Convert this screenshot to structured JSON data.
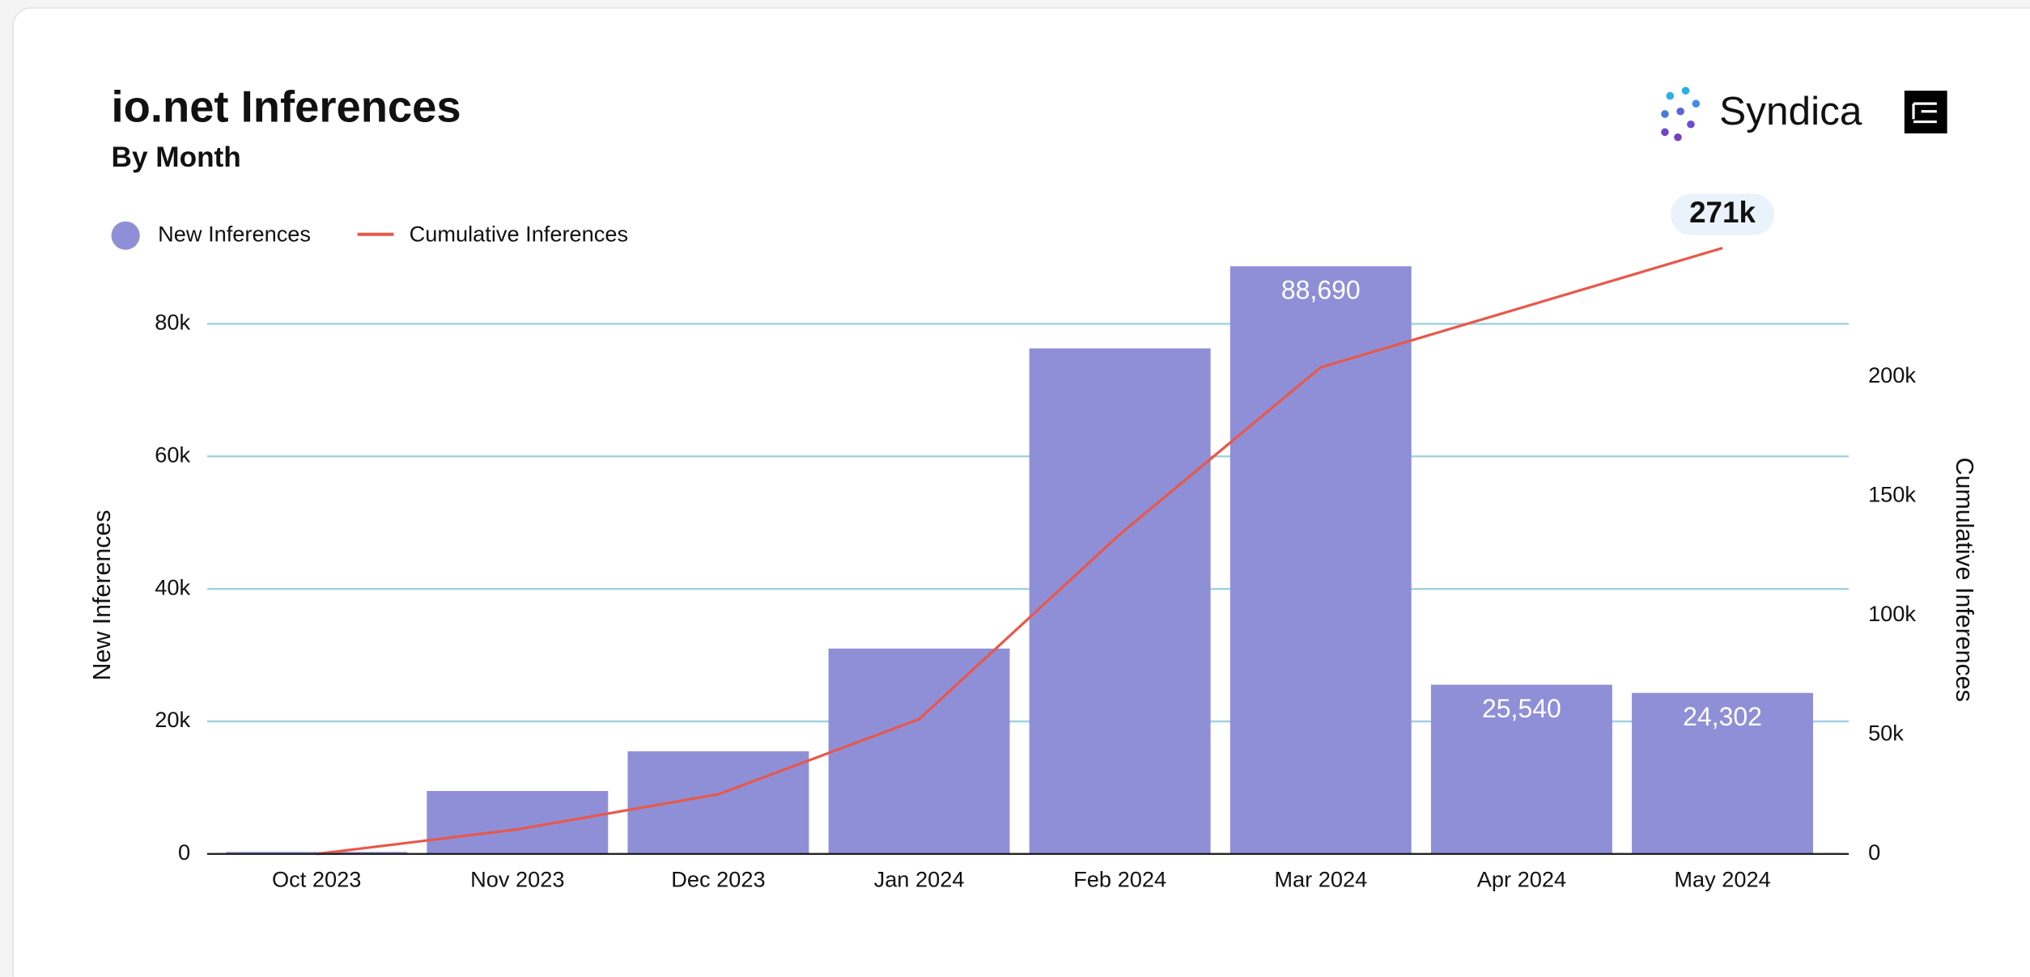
{
  "brand": "Syndica",
  "chart_data": {
    "type": "bar",
    "title": "io.net Inferences",
    "subtitle": "By Month",
    "y_label": "New Inferences",
    "y2_label": "Cumulative Inferences",
    "annotation": "271k",
    "categories": [
      "Oct 2023",
      "Nov 2023",
      "Dec 2023",
      "Jan 2024",
      "Feb 2024",
      "Mar 2024",
      "Apr 2024",
      "May 2024"
    ],
    "series": [
      {
        "name": "New Inferences",
        "type": "bar",
        "color": "#8f8fd8",
        "values": [
          300,
          9500,
          15500,
          31000,
          76300,
          88690,
          25540,
          24302
        ],
        "value_labels": [
          null,
          null,
          null,
          null,
          null,
          "88,690",
          "25,540",
          "24,302"
        ]
      },
      {
        "name": "Cumulative Inferences",
        "type": "line",
        "color": "#e8584a",
        "axis": "y2",
        "values": [
          0,
          10300,
          25000,
          56500,
          134000,
          204000,
          229000,
          254000
        ]
      }
    ],
    "ylim": [
      0,
      90000
    ],
    "yticks": [
      {
        "value": 0,
        "label": "0"
      },
      {
        "value": 20000,
        "label": "20k"
      },
      {
        "value": 40000,
        "label": "40k"
      },
      {
        "value": 60000,
        "label": "60k"
      },
      {
        "value": 80000,
        "label": "80k"
      }
    ],
    "y2lim": [
      0,
      250000
    ],
    "y2ticks": [
      {
        "value": 0,
        "label": "0"
      },
      {
        "value": 50000,
        "label": "50k"
      },
      {
        "value": 100000,
        "label": "100k"
      },
      {
        "value": 150000,
        "label": "150k"
      },
      {
        "value": 200000,
        "label": "200k"
      }
    ],
    "grid": true
  }
}
